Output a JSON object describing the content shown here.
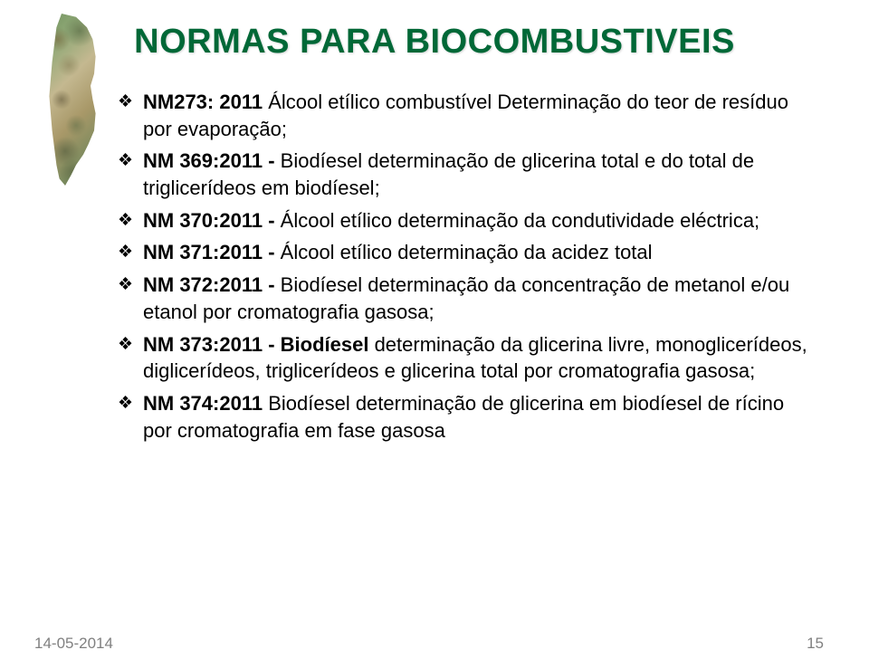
{
  "title": "NORMAS PARA BIOCOMBUSTIVEIS",
  "title_color": "#006837",
  "title_fontsize": 38,
  "background_color": "#ffffff",
  "body_fontsize": 22,
  "body_color": "#000000",
  "bullet_glyph": "❖",
  "footer_color": "#808080",
  "footer_fontsize": 17,
  "items": [
    {
      "bold": "NM273: 2011",
      "rest": " Álcool etílico combustível Determinação do teor de resíduo por evaporação;"
    },
    {
      "bold": "NM 369:2011 -",
      "rest": " Biodíesel determinação de glicerina total e do total de triglicerídeos em biodíesel;"
    },
    {
      "bold": "NM 370:2011 -",
      "rest": " Álcool etílico determinação da condutividade eléctrica;"
    },
    {
      "bold": "NM 371:2011 -",
      "rest": " Álcool etílico determinação da acidez total"
    },
    {
      "bold": "NM 372:2011 -",
      "rest": " Biodíesel determinação da concentração de metanol e/ou etanol por cromatografia gasosa;"
    },
    {
      "bold": "NM 373:2011 - Biodíesel",
      "rest": " determinação da glicerina livre, monoglicerídeos, diglicerídeos, triglicerídeos e glicerina total por cromatografia gasosa;"
    },
    {
      "bold": "NM 374:2011",
      "rest": " Biodíesel determinação de glicerina em biodíesel de rícino por cromatografia em fase gasosa"
    }
  ],
  "footer": {
    "date": "14-05-2014",
    "page": "15"
  }
}
